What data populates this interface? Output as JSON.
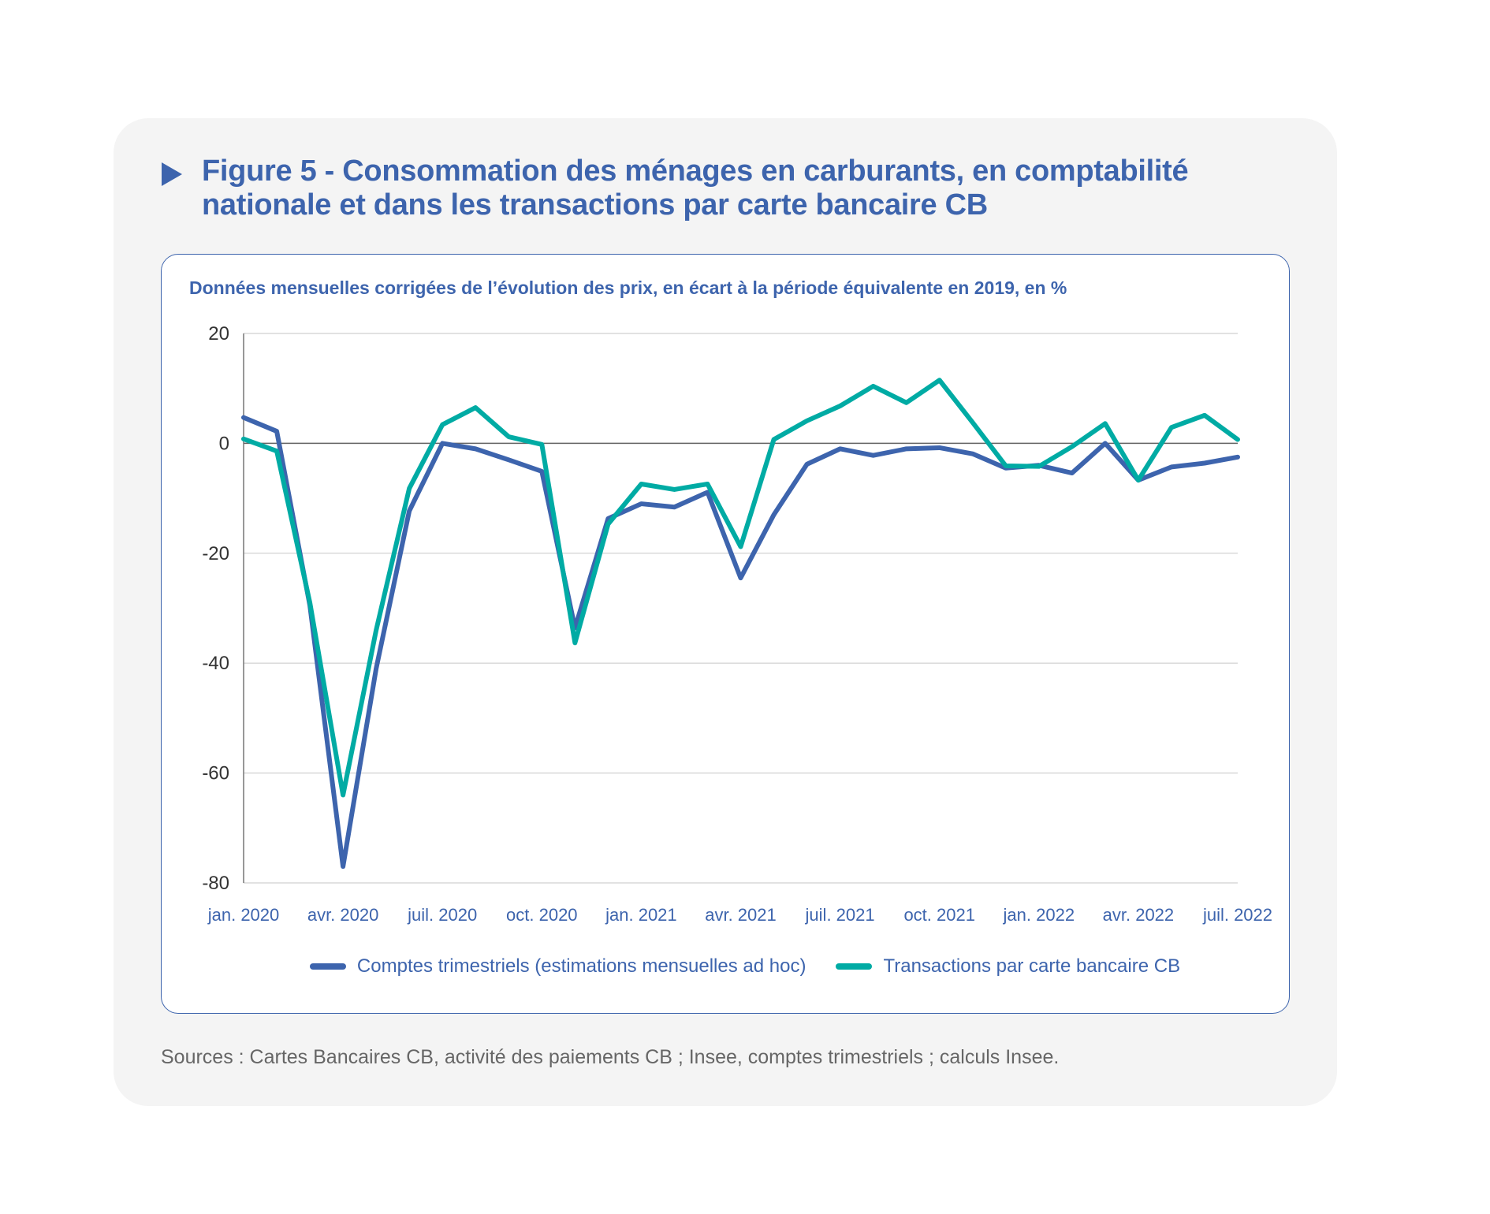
{
  "figure": {
    "title": "Figure 5 - Consommation des ménages en carburants, en comptabilité nationale et dans les transactions par carte bancaire CB",
    "arrow_icon": "triangle-right-icon",
    "sources": "Sources : Cartes Bancaires CB, activité des paiements CB ; Insee, comptes trimestriels ; calculs Insee."
  },
  "chart_data": {
    "type": "line",
    "title": "Figure 5 - Consommation des ménages en carburants, en comptabilité nationale et dans les transactions par carte bancaire CB",
    "subtitle": "Données mensuelles corrigées de l’évolution des prix, en écart à la période équivalente en 2019, en %",
    "xlabel": "",
    "ylabel": "",
    "ylim": [
      -80,
      20
    ],
    "yticks": [
      20,
      0,
      -20,
      -40,
      -60,
      -80
    ],
    "ytick_labels": [
      "20",
      "0",
      "-20",
      "-40",
      "-60",
      "-80"
    ],
    "x": [
      "jan. 2020",
      "févr. 2020",
      "mars 2020",
      "avr. 2020",
      "mai 2020",
      "juin 2020",
      "juil. 2020",
      "août 2020",
      "sept. 2020",
      "oct. 2020",
      "nov. 2020",
      "déc. 2020",
      "jan. 2021",
      "févr. 2021",
      "mars 2021",
      "avr. 2021",
      "mai 2021",
      "juin 2021",
      "juil. 2021",
      "août 2021",
      "sept. 2021",
      "oct. 2021",
      "nov. 2021",
      "déc. 2021",
      "jan. 2022",
      "févr. 2022",
      "mars 2022",
      "avr. 2022",
      "mai 2022",
      "juin 2022",
      "juil. 2022"
    ],
    "xtick_labels": [
      {
        "index": 0,
        "label": "jan. 2020"
      },
      {
        "index": 3,
        "label": "avr. 2020"
      },
      {
        "index": 6,
        "label": "juil. 2020"
      },
      {
        "index": 9,
        "label": "oct. 2020"
      },
      {
        "index": 12,
        "label": "jan. 2021"
      },
      {
        "index": 15,
        "label": "avr. 2021"
      },
      {
        "index": 18,
        "label": "juil. 2021"
      },
      {
        "index": 21,
        "label": "oct. 2021"
      },
      {
        "index": 24,
        "label": "jan. 2022"
      },
      {
        "index": 27,
        "label": "avr. 2022"
      },
      {
        "index": 30,
        "label": "juil. 2022"
      }
    ],
    "grid": true,
    "zero_line": true,
    "legend_position": "bottom-center",
    "series": [
      {
        "name": "Comptes trimestriels (estimations mensuelles ad hoc)",
        "color": "#3d64ad",
        "values": [
          4.7,
          2.2,
          -29.5,
          -77,
          -41,
          -12.3,
          0,
          -1,
          -3,
          -5.1,
          -33.6,
          -13.7,
          -11,
          -11.6,
          -8.9,
          -24.5,
          -13,
          -3.8,
          -1,
          -2.2,
          -1,
          -0.8,
          -1.9,
          -4.5,
          -4,
          -5.4,
          0,
          -6.7,
          -4.3,
          -3.6,
          -2.5
        ]
      },
      {
        "name": "Transactions par carte bancaire CB",
        "color": "#00aba4",
        "values": [
          0.8,
          -1.4,
          -29,
          -64,
          -34,
          -8.2,
          3.4,
          6.5,
          1.2,
          -0.2,
          -36.3,
          -14.7,
          -7.4,
          -8.4,
          -7.4,
          -18.8,
          0.7,
          4.1,
          6.8,
          10.4,
          7.4,
          11.5,
          3.8,
          -4.1,
          -4.2,
          -0.6,
          3.6,
          -6.7,
          2.9,
          5.1,
          0.7
        ]
      }
    ]
  }
}
